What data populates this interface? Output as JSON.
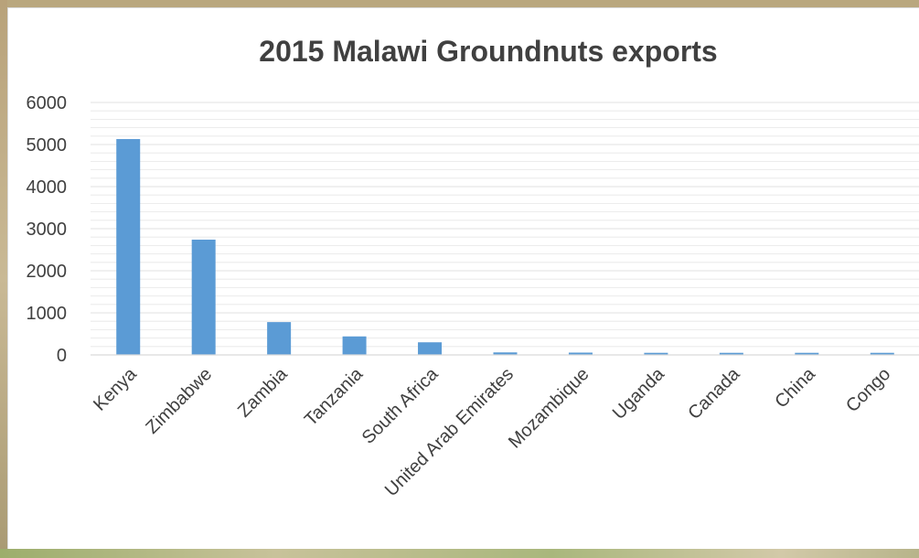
{
  "chart_data": {
    "type": "bar",
    "title": "2015 Malawi Groundnuts exports",
    "categories": [
      "Kenya",
      "Zimbabwe",
      "Zambia",
      "Tanzania",
      "South Africa",
      "United Arab Emirates",
      "Mozambique",
      "Uganda",
      "Canada",
      "China",
      "Congo"
    ],
    "values": [
      5130,
      2740,
      780,
      440,
      300,
      60,
      55,
      50,
      50,
      50,
      50
    ],
    "y_ticks": [
      "0",
      "1000",
      "2000",
      "3000",
      "4000",
      "5000",
      "6000"
    ],
    "ylim": [
      0,
      6000
    ],
    "grid": true,
    "legend": false,
    "bar_color": "#5b9bd5",
    "grid_color": "#e6e6e6",
    "text_color": "#404040"
  }
}
